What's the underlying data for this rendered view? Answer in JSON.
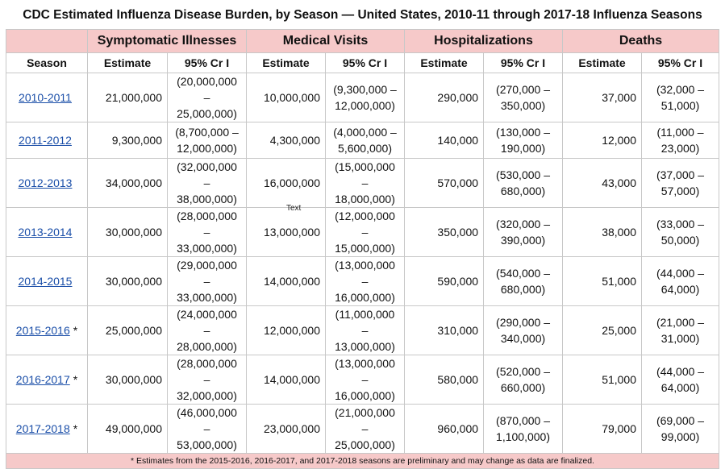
{
  "title": "CDC Estimated Influenza Disease Burden, by Season — United States, 2010-11 through 2017-18 Influenza Seasons",
  "groups": [
    "Symptomatic Illnesses",
    "Medical Visits",
    "Hospitalizations",
    "Deaths"
  ],
  "subheaders": {
    "season": "Season",
    "estimate": "Estimate",
    "ci": "95% Cr I"
  },
  "stray_text": "Text",
  "footnote": "* Estimates from the 2015-2016, 2016-2017, and 2017-2018 seasons are preliminary and may change as data are finalized.",
  "rows": [
    {
      "season": "2010-2011",
      "mark": "",
      "ill": {
        "est": "21,000,000",
        "ci1": "(20,000,000 –",
        "ci2": "25,000,000)"
      },
      "med": {
        "est": "10,000,000",
        "ci1": "(9,300,000 –",
        "ci2": "12,000,000)"
      },
      "hosp": {
        "est": "290,000",
        "ci1": "(270,000 –",
        "ci2": "350,000)"
      },
      "death": {
        "est": "37,000",
        "ci1": "(32,000 –",
        "ci2": "51,000)"
      }
    },
    {
      "season": "2011-2012",
      "mark": "",
      "ill": {
        "est": "9,300,000",
        "ci1": "(8,700,000 –",
        "ci2": "12,000,000)"
      },
      "med": {
        "est": "4,300,000",
        "ci1": "(4,000,000 –",
        "ci2": "5,600,000)"
      },
      "hosp": {
        "est": "140,000",
        "ci1": "(130,000 –",
        "ci2": "190,000)"
      },
      "death": {
        "est": "12,000",
        "ci1": "(11,000 –",
        "ci2": "23,000)"
      }
    },
    {
      "season": "2012-2013",
      "mark": "",
      "ill": {
        "est": "34,000,000",
        "ci1": "(32,000,000 –",
        "ci2": "38,000,000)"
      },
      "med": {
        "est": "16,000,000",
        "ci1": "(15,000,000 –",
        "ci2": "18,000,000)"
      },
      "hosp": {
        "est": "570,000",
        "ci1": "(530,000 –",
        "ci2": "680,000)"
      },
      "death": {
        "est": "43,000",
        "ci1": "(37,000 –",
        "ci2": "57,000)"
      }
    },
    {
      "season": "2013-2014",
      "mark": "",
      "ill": {
        "est": "30,000,000",
        "ci1": "(28,000,000 –",
        "ci2": "33,000,000)"
      },
      "med": {
        "est": "13,000,000",
        "ci1": "(12,000,000 –",
        "ci2": "15,000,000)"
      },
      "hosp": {
        "est": "350,000",
        "ci1": "(320,000 –",
        "ci2": "390,000)"
      },
      "death": {
        "est": "38,000",
        "ci1": "(33,000 –",
        "ci2": "50,000)"
      }
    },
    {
      "season": "2014-2015",
      "mark": "",
      "ill": {
        "est": "30,000,000",
        "ci1": "(29,000,000 –",
        "ci2": "33,000,000)"
      },
      "med": {
        "est": "14,000,000",
        "ci1": "(13,000,000 –",
        "ci2": "16,000,000)"
      },
      "hosp": {
        "est": "590,000",
        "ci1": "(540,000 –",
        "ci2": "680,000)"
      },
      "death": {
        "est": "51,000",
        "ci1": "(44,000 –",
        "ci2": "64,000)"
      }
    },
    {
      "season": "2015-2016",
      "mark": "*",
      "ill": {
        "est": "25,000,000",
        "ci1": "(24,000,000 –",
        "ci2": "28,000,000)"
      },
      "med": {
        "est": "12,000,000",
        "ci1": "(11,000,000 –",
        "ci2": "13,000,000)"
      },
      "hosp": {
        "est": "310,000",
        "ci1": "(290,000 –",
        "ci2": "340,000)"
      },
      "death": {
        "est": "25,000",
        "ci1": "(21,000 –",
        "ci2": "31,000)"
      }
    },
    {
      "season": "2016-2017",
      "mark": "*",
      "ill": {
        "est": "30,000,000",
        "ci1": "(28,000,000 –",
        "ci2": "32,000,000)"
      },
      "med": {
        "est": "14,000,000",
        "ci1": "(13,000,000 –",
        "ci2": "16,000,000)"
      },
      "hosp": {
        "est": "580,000",
        "ci1": "(520,000 –",
        "ci2": "660,000)"
      },
      "death": {
        "est": "51,000",
        "ci1": "(44,000 –",
        "ci2": "64,000)"
      }
    },
    {
      "season": "2017-2018",
      "mark": "*",
      "ill": {
        "est": "49,000,000",
        "ci1": "(46,000,000 –",
        "ci2": "53,000,000)"
      },
      "med": {
        "est": "23,000,000",
        "ci1": "(21,000,000 –",
        "ci2": "25,000,000)"
      },
      "hosp": {
        "est": "960,000",
        "ci1": "(870,000 –",
        "ci2": "1,100,000)"
      },
      "death": {
        "est": "79,000",
        "ci1": "(69,000 –",
        "ci2": "99,000)"
      }
    }
  ]
}
